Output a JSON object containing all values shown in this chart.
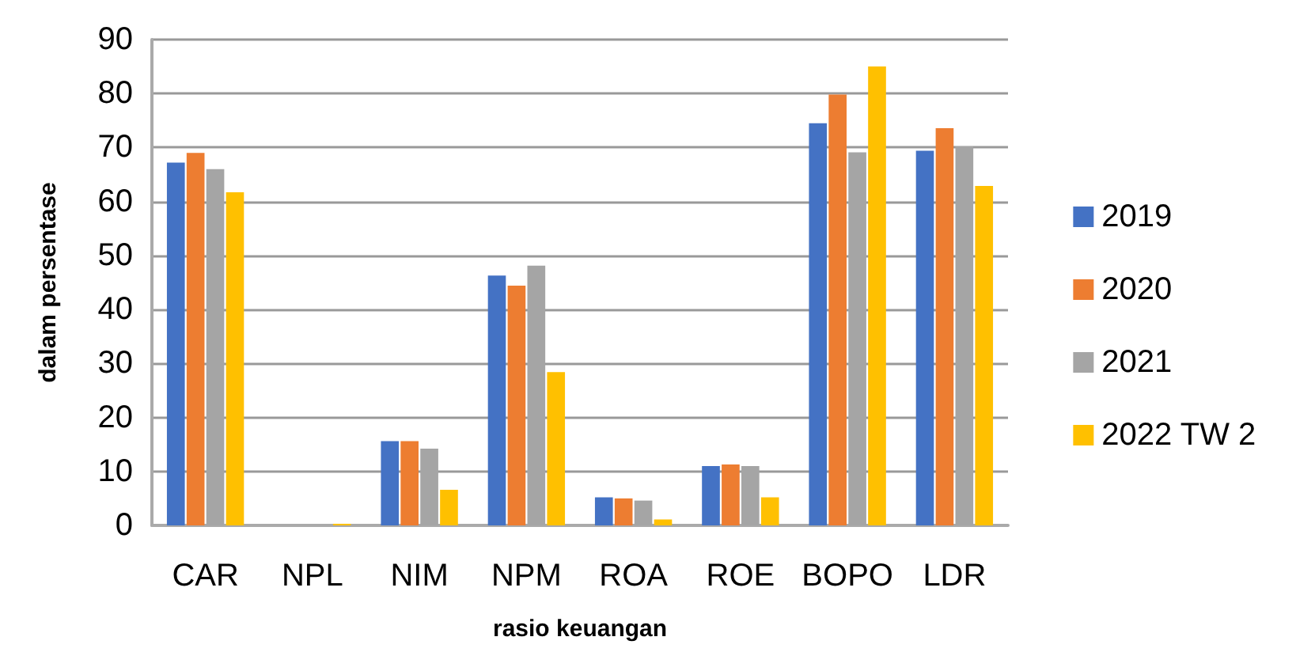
{
  "chart_data": {
    "type": "bar",
    "xlabel": "rasio keuangan",
    "ylabel": "dalam persentase",
    "categories": [
      "CAR",
      "NPL",
      "NIM",
      "NPM",
      "ROA",
      "ROE",
      "BOPO",
      "LDR"
    ],
    "series": [
      {
        "name": "2019",
        "color": "#4472c4",
        "values": [
          67.2,
          0,
          15.6,
          46.3,
          5.2,
          11,
          74.5,
          69.4
        ]
      },
      {
        "name": "2020",
        "color": "#ed7d31",
        "values": [
          69,
          0,
          15.6,
          44.4,
          5,
          11.3,
          79.8,
          73.6
        ]
      },
      {
        "name": "2021",
        "color": "#a5a5a5",
        "values": [
          66,
          0,
          14.2,
          48.1,
          4.6,
          11,
          69.1,
          70.2
        ]
      },
      {
        "name": "2022 TW 2",
        "color": "#ffc000",
        "values": [
          61.7,
          0.3,
          6.6,
          28.4,
          1.1,
          5.2,
          85,
          62.9
        ]
      }
    ],
    "ylim": [
      0,
      90
    ],
    "yticks": [
      0,
      10,
      20,
      30,
      40,
      50,
      60,
      70,
      80,
      90
    ],
    "grid": "y",
    "legend": "right"
  }
}
